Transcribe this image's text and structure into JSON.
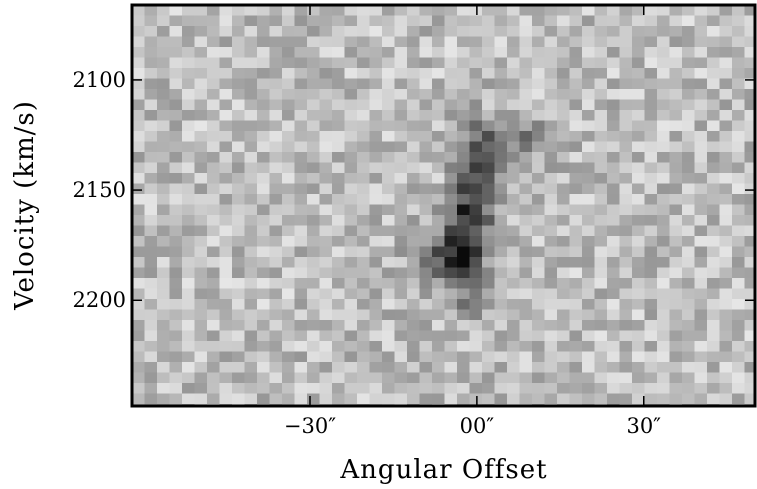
{
  "chart_data": {
    "type": "image",
    "xlabel": "Angular Offset",
    "ylabel": "Velocity (km/s)",
    "xlim": [
      -62,
      50
    ],
    "ylim": [
      2066,
      2248
    ],
    "xticks": [
      {
        "value": -30,
        "label": "−30″"
      },
      {
        "value": 0,
        "label": "00″"
      },
      {
        "value": 30,
        "label": "30″"
      }
    ],
    "yticks": [
      2100,
      2150,
      2200
    ],
    "colormap": "gray"
  }
}
